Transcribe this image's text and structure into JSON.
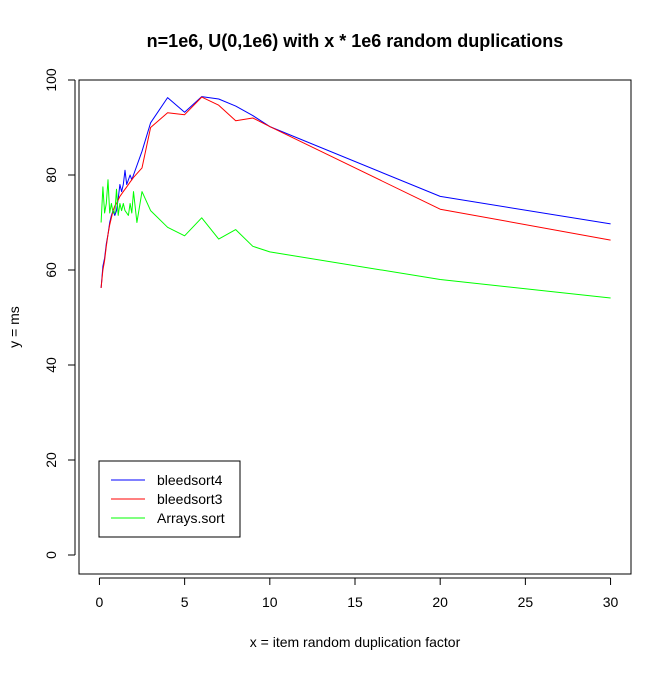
{
  "chart_data": {
    "type": "line",
    "title": "n=1e6, U(0,1e6) with x * 1e6 random duplications",
    "xlabel": "x = item random duplication factor",
    "ylabel": "y = ms",
    "xlim": [
      -1.2,
      31.2
    ],
    "ylim": [
      -4,
      100
    ],
    "xticks": [
      0,
      5,
      10,
      15,
      20,
      25,
      30
    ],
    "yticks": [
      0,
      20,
      40,
      60,
      80,
      100
    ],
    "xtick_labels": [
      "0",
      "5",
      "10",
      "15",
      "20",
      "25",
      "30"
    ],
    "ytick_labels": [
      "0",
      "20",
      "40",
      "60",
      "80",
      "100"
    ],
    "grid": false,
    "legend_position": "bottom-left",
    "series": [
      {
        "name": "bleedsort4",
        "color": "#0000ff",
        "x": [
          0.1,
          0.2,
          0.3,
          0.4,
          0.5,
          0.6,
          0.7,
          0.8,
          0.9,
          1.0,
          1.1,
          1.2,
          1.3,
          1.4,
          1.5,
          1.6,
          1.7,
          1.8,
          1.9,
          2.0,
          2.5,
          3.0,
          4.0,
          5.0,
          6.0,
          7.0,
          8.0,
          9.0,
          10.0,
          20.0,
          30.0
        ],
        "y": [
          56.2,
          60.8,
          62.5,
          65.5,
          67.5,
          70.0,
          71.5,
          72.5,
          71.5,
          72.5,
          75.0,
          78.0,
          76.5,
          78.0,
          81.0,
          78.0,
          79.0,
          80.0,
          79.0,
          80.0,
          85.0,
          91.0,
          96.3,
          93.2,
          96.5,
          96.0,
          94.5,
          92.5,
          90.2,
          75.5,
          69.7
        ]
      },
      {
        "name": "bleedsort3",
        "color": "#ff0000",
        "x": [
          0.1,
          0.2,
          0.3,
          0.4,
          0.5,
          0.6,
          0.7,
          0.8,
          0.9,
          1.0,
          1.2,
          1.4,
          1.6,
          1.8,
          2.0,
          2.5,
          3.0,
          4.0,
          5.0,
          6.0,
          7.0,
          8.0,
          9.0,
          10.0,
          20.0,
          30.0
        ],
        "y": [
          56.2,
          60.0,
          62.0,
          65.0,
          67.5,
          69.5,
          71.0,
          72.5,
          73.5,
          74.0,
          75.5,
          76.5,
          77.5,
          78.5,
          79.5,
          81.5,
          90.0,
          93.1,
          92.7,
          96.4,
          94.7,
          91.4,
          92.0,
          90.2,
          72.8,
          66.3
        ]
      },
      {
        "name": "Arrays.sort",
        "color": "#00ff00",
        "x": [
          0.1,
          0.2,
          0.3,
          0.4,
          0.5,
          0.6,
          0.7,
          0.8,
          0.9,
          1.0,
          1.1,
          1.2,
          1.3,
          1.4,
          1.5,
          1.6,
          1.7,
          1.8,
          1.9,
          2.0,
          2.2,
          2.5,
          3.0,
          4.0,
          5.0,
          6.0,
          7.0,
          8.0,
          9.0,
          10.0,
          20.0,
          30.0
        ],
        "y": [
          70.0,
          77.5,
          72.0,
          74.0,
          79.0,
          72.0,
          74.0,
          72.0,
          72.0,
          77.0,
          71.5,
          74.0,
          72.5,
          74.0,
          72.5,
          72.0,
          71.5,
          74.0,
          72.0,
          76.5,
          70.0,
          76.5,
          72.5,
          69.0,
          67.2,
          71.0,
          66.5,
          68.5,
          65.0,
          63.8,
          58.0,
          54.1
        ]
      }
    ]
  }
}
